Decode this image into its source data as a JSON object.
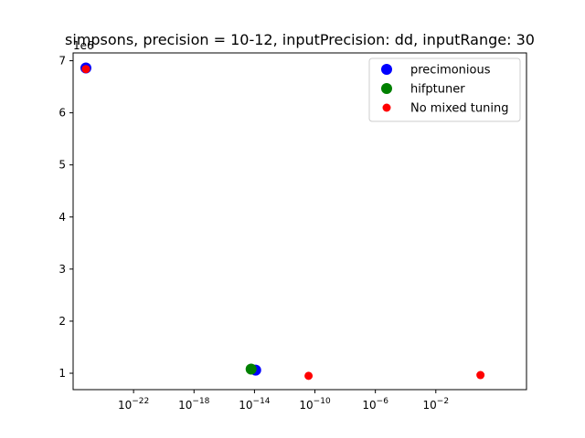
{
  "chart_data": {
    "type": "scatter",
    "title": "simpsons, precision = 10-12, inputPrecision: dd, inputRange: 30",
    "xlabel": "",
    "ylabel": "",
    "x_scale": "log",
    "xlim_log10": [
      -26,
      4
    ],
    "ylim": [
      685000,
      7150000
    ],
    "y_offset_label": "1e6",
    "y_ticks": [
      1,
      2,
      3,
      4,
      5,
      6,
      7
    ],
    "x_tick_exponents": [
      -22,
      -18,
      -14,
      -10,
      -6,
      -2
    ],
    "grid": false,
    "legend_position": "upper right",
    "series": [
      {
        "name": "precimonious",
        "color": "#0000ff",
        "marker_size": "large",
        "points": [
          {
            "x": 7e-26,
            "y": 6860000
          },
          {
            "x": 1.2e-14,
            "y": 1060000
          }
        ]
      },
      {
        "name": "hifptuner",
        "color": "#008000",
        "marker_size": "large",
        "points": [
          {
            "x": 6e-15,
            "y": 1080000
          }
        ]
      },
      {
        "name": "No mixed tuning",
        "color": "#ff0000",
        "marker_size": "small",
        "points": [
          {
            "x": 7e-26,
            "y": 6840000
          },
          {
            "x": 3.8e-11,
            "y": 950000
          },
          {
            "x": 9.0,
            "y": 965000
          }
        ]
      }
    ]
  }
}
